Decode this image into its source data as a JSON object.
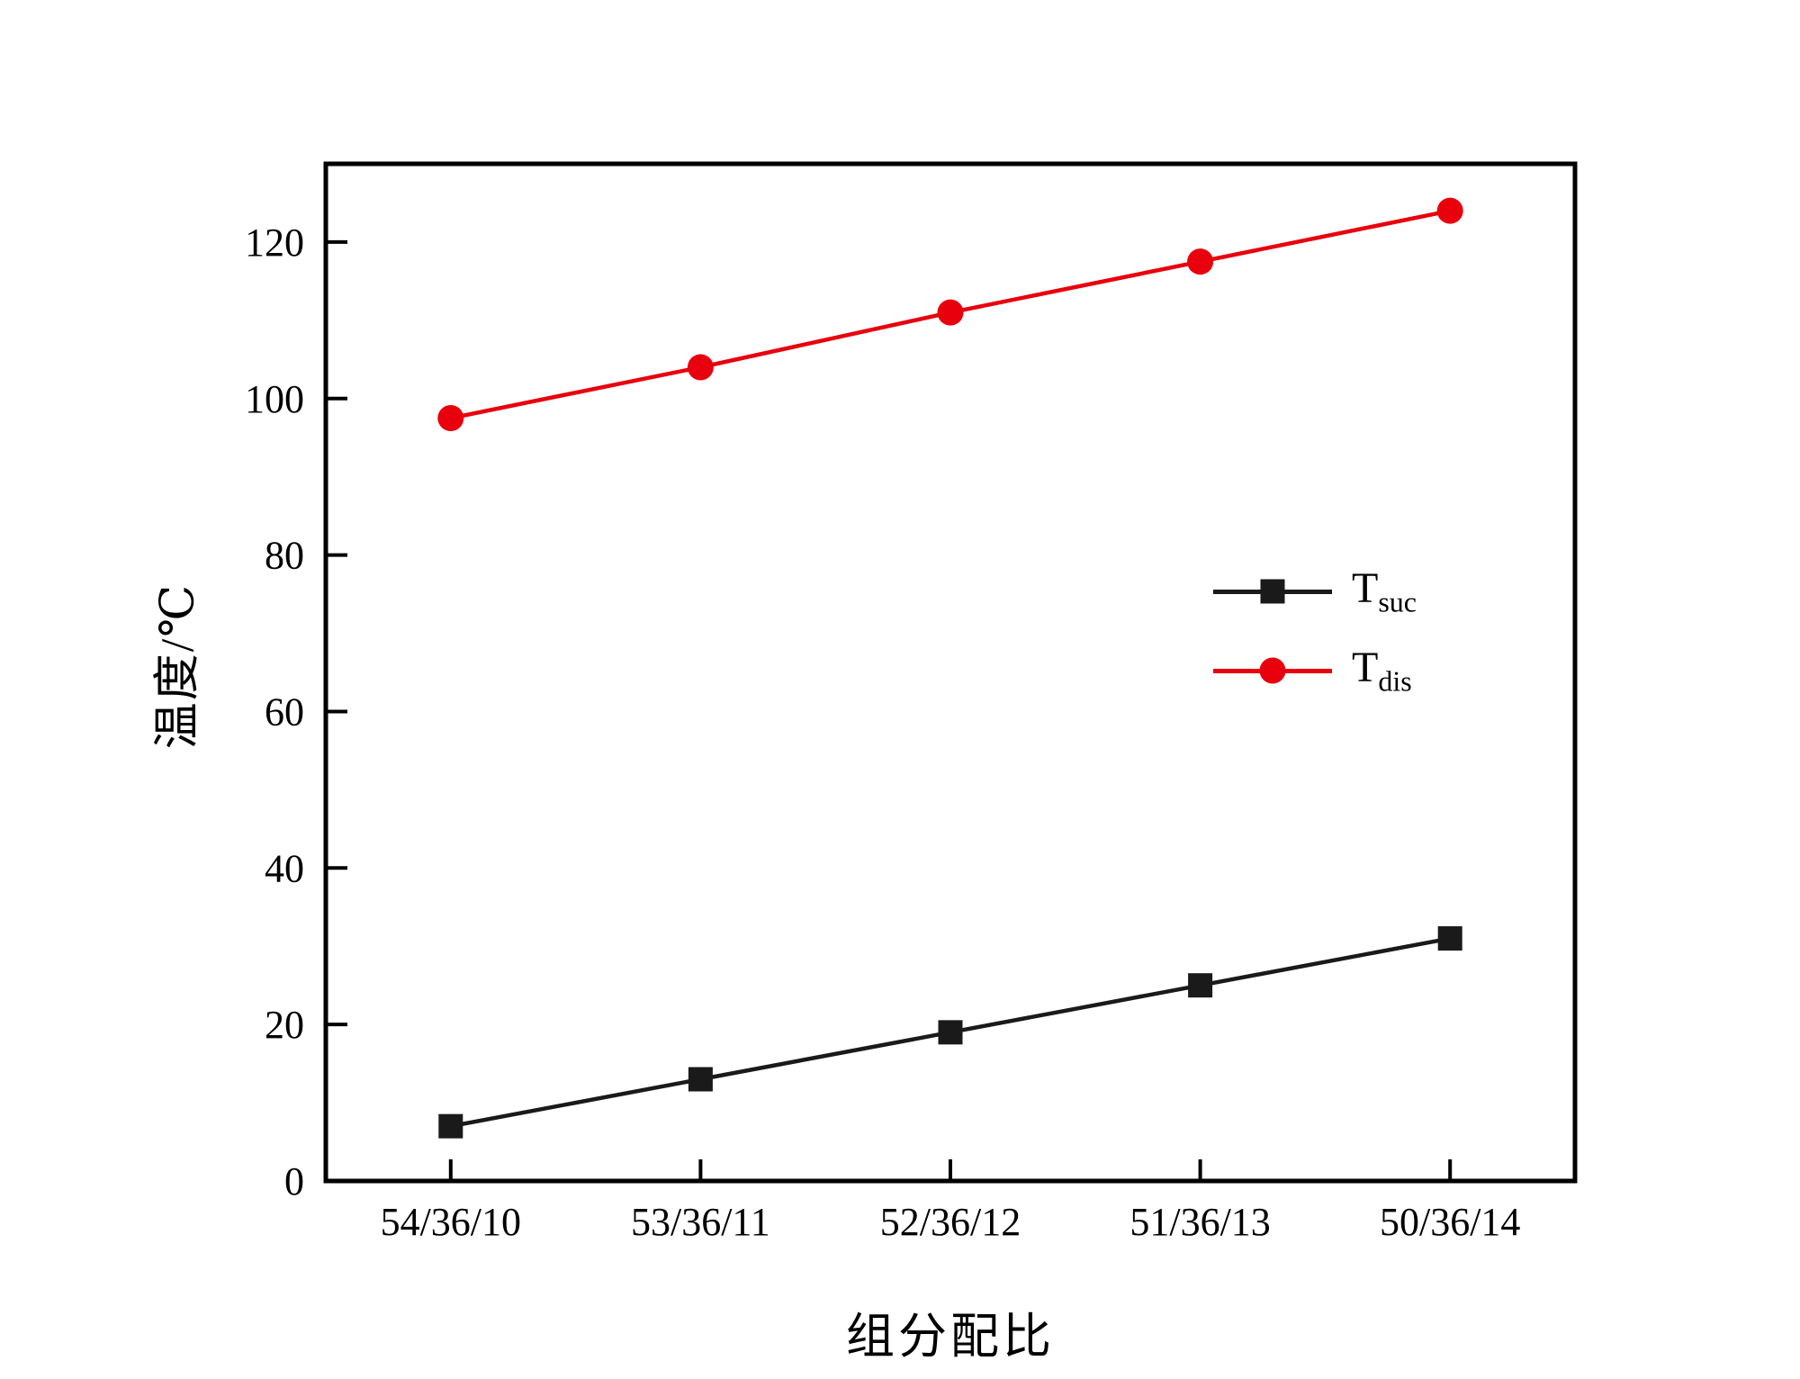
{
  "chart_data": {
    "type": "line",
    "title": "",
    "xlabel": "组分配比",
    "ylabel": "温度/℃",
    "categories": [
      "54/36/10",
      "53/36/11",
      "52/36/12",
      "51/36/13",
      "50/36/14"
    ],
    "series": [
      {
        "name": "Tsuc",
        "label_main": "T",
        "label_sub": "suc",
        "color": "#1a1a1a",
        "marker": "square",
        "values": [
          7,
          13,
          19,
          25,
          31
        ]
      },
      {
        "name": "Tdis",
        "label_main": "T",
        "label_sub": "dis",
        "color": "#e8000d",
        "marker": "circle",
        "values": [
          97.5,
          104,
          111,
          117.5,
          124
        ]
      }
    ],
    "ylim": [
      0,
      130
    ],
    "yticks": [
      0,
      20,
      40,
      60,
      80,
      100,
      120
    ],
    "legend_position": "middle-right",
    "grid": false,
    "axis_color": "#000000"
  }
}
